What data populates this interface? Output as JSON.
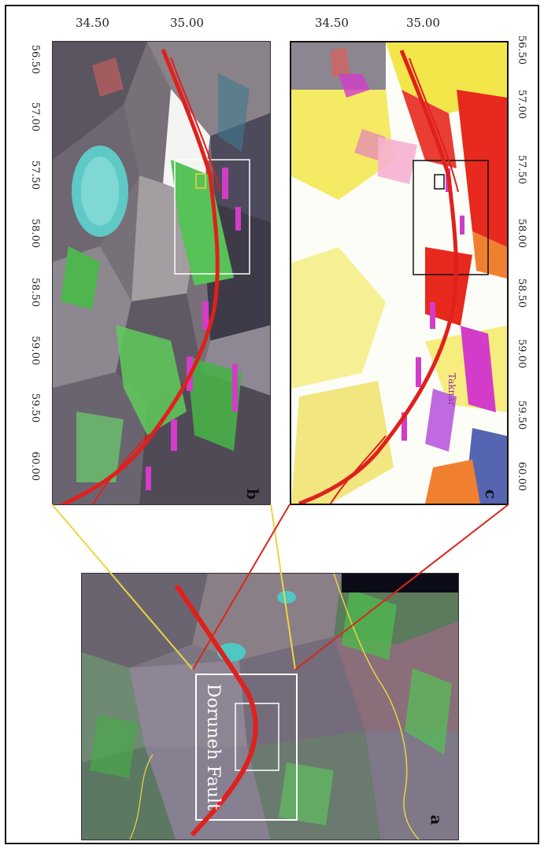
{
  "figure": {
    "panel_labels": {
      "a": "a",
      "b": "b",
      "c": "c"
    },
    "latitude_ticks": [
      "34.50",
      "35.00"
    ],
    "longitude_ticks": [
      "56.50",
      "57.00",
      "57.50",
      "58.00",
      "58.50",
      "59.00",
      "59.50",
      "60.00"
    ],
    "overview_label": "Doruneh Fault",
    "fault_annotation": "Taknar",
    "colors": {
      "fault": "#e0201c",
      "link_yellow": "#e8d640",
      "link_red": "#d8281c",
      "satellite_base": "#7a7580",
      "vegetation_green": "#4fc24f",
      "geology_yellow": "#f2e64a",
      "geology_red": "#e8291e",
      "geology_magenta": "#d23cc8"
    }
  }
}
